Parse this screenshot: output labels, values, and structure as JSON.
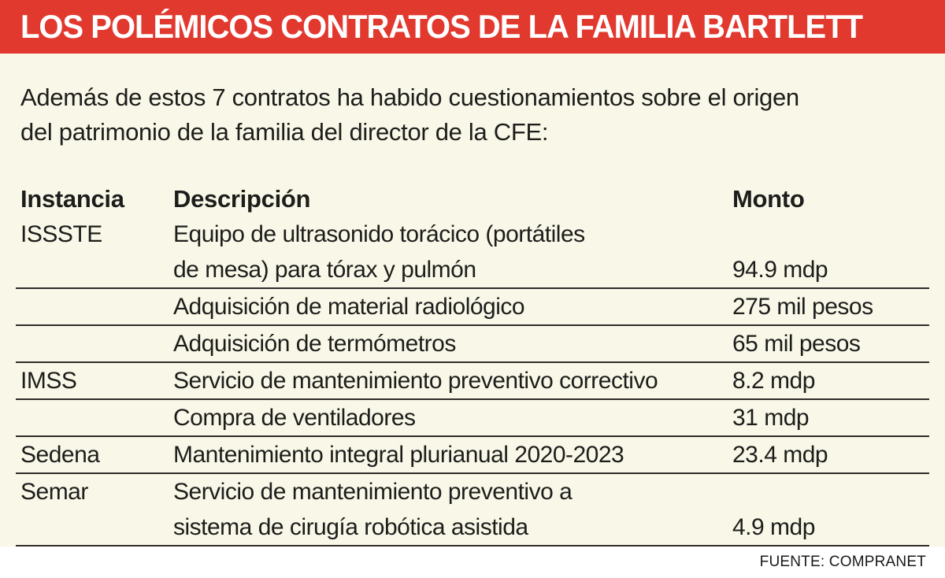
{
  "colors": {
    "accent": "#e2392f",
    "paper": "#f9f8e8",
    "ink": "#1d1d1b",
    "rule": "#2e2c29",
    "banner_text": "#ffffff",
    "page_bg": "#ffffff"
  },
  "banner": {
    "title": "LOS POLÉMICOS CONTRATOS DE LA FAMILIA BARTLETT"
  },
  "intro": {
    "text": "Además de estos 7 contratos ha habido cuestionamientos sobre el origen\ndel patrimonio de la familia del director de la CFE:"
  },
  "chart_data": {
    "type": "table",
    "title": "LOS POLÉMICOS CONTRATOS DE LA FAMILIA BARTLETT",
    "columns": [
      "Instancia",
      "Descripción",
      "Monto"
    ],
    "rows": [
      {
        "instancia": "ISSSTE",
        "descripcion": "Equipo de ultrasonido torácico (portátiles\nde mesa) para tórax y pulmón",
        "monto": "94.9 mdp"
      },
      {
        "instancia": "",
        "descripcion": "Adquisición de material radiológico",
        "monto": "275 mil pesos"
      },
      {
        "instancia": "",
        "descripcion": "Adquisición de termómetros",
        "monto": "65 mil pesos"
      },
      {
        "instancia": "IMSS",
        "descripcion": "Servicio de mantenimiento preventivo correctivo",
        "monto": "8.2 mdp"
      },
      {
        "instancia": "",
        "descripcion": "Compra de ventiladores",
        "monto": "31 mdp"
      },
      {
        "instancia": "Sedena",
        "descripcion": "Mantenimiento integral plurianual 2020-2023",
        "monto": "23.4 mdp"
      },
      {
        "instancia": "Semar",
        "descripcion": "Servicio de mantenimiento preventivo a\nsistema de cirugía robótica asistida",
        "monto": "4.9 mdp"
      }
    ]
  },
  "footer": {
    "source": "FUENTE: COMPRANET"
  }
}
